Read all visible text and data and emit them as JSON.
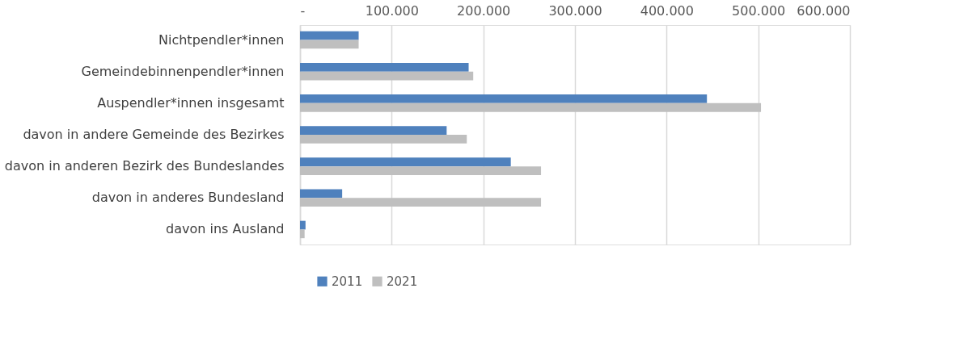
{
  "chart_data": {
    "type": "bar",
    "orientation": "horizontal",
    "categories": [
      "Nichtpendler*innen",
      "Gemeindebinnenpendler*innen",
      "Auspendler*innen insgesamt",
      "davon in andere Gemeinde des Bezirkes",
      "davon in anderen Bezirk des Bundeslandes",
      "davon in anderes Bundesland",
      "davon ins Ausland"
    ],
    "series": [
      {
        "name": "2011",
        "color": "#4f81bd",
        "values": [
          64000,
          184000,
          444000,
          160000,
          230000,
          46000,
          6000
        ]
      },
      {
        "name": "2021",
        "color": "#bfbfbf",
        "values": [
          64000,
          189000,
          503000,
          182000,
          263000,
          263000,
          5000
        ]
      }
    ],
    "xlim": [
      0,
      600000
    ],
    "xticks": [
      {
        "value": 0,
        "label": "-"
      },
      {
        "value": 100000,
        "label": "100.000"
      },
      {
        "value": 200000,
        "label": "200.000"
      },
      {
        "value": 300000,
        "label": "300.000"
      },
      {
        "value": 400000,
        "label": "400.000"
      },
      {
        "value": 500000,
        "label": "500.000"
      },
      {
        "value": 600000,
        "label": "600.000"
      }
    ],
    "grid": "x",
    "legend": "bottom"
  }
}
